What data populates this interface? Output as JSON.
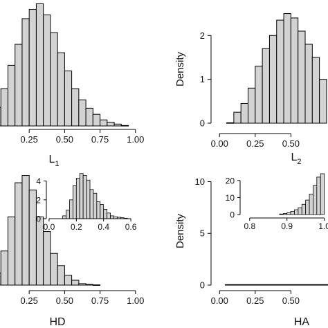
{
  "chart_data": [
    {
      "type": "bar",
      "panel": "L1",
      "xlabel_main": "L",
      "xlabel_sub": "1",
      "ylabel": "",
      "xticks": [
        "0.25",
        "0.50",
        "0.75",
        "1.00"
      ],
      "xlim": [
        0,
        1.05
      ],
      "ylim": [
        0,
        2.7
      ],
      "bins": [
        [
          0.0,
          0.05
        ],
        [
          0.05,
          0.1
        ],
        [
          0.1,
          0.15
        ],
        [
          0.15,
          0.2
        ],
        [
          0.2,
          0.25
        ],
        [
          0.25,
          0.3
        ],
        [
          0.3,
          0.35
        ],
        [
          0.35,
          0.4
        ],
        [
          0.4,
          0.45
        ],
        [
          0.45,
          0.5
        ],
        [
          0.5,
          0.55
        ],
        [
          0.55,
          0.6
        ],
        [
          0.6,
          0.65
        ],
        [
          0.65,
          0.7
        ],
        [
          0.7,
          0.75
        ],
        [
          0.75,
          0.8
        ],
        [
          0.8,
          0.85
        ],
        [
          0.85,
          0.9
        ],
        [
          0.9,
          0.95
        ]
      ],
      "values": [
        0.4,
        0.8,
        1.3,
        1.75,
        2.3,
        2.5,
        2.62,
        2.38,
        2.0,
        1.57,
        1.18,
        0.8,
        0.56,
        0.38,
        0.25,
        0.13,
        0.08,
        0.04,
        0.01
      ]
    },
    {
      "type": "bar",
      "panel": "L2",
      "xlabel_main": "L",
      "xlabel_sub": "2",
      "ylabel": "Density",
      "xticks": [
        "0.00",
        "0.25",
        "0.50"
      ],
      "yticks": [
        "0",
        "1",
        "2"
      ],
      "xlim": [
        -0.04,
        0.76
      ],
      "ylim": [
        0,
        2.62
      ],
      "bins": [
        [
          0.05,
          0.1
        ],
        [
          0.1,
          0.15
        ],
        [
          0.15,
          0.2
        ],
        [
          0.2,
          0.25
        ],
        [
          0.25,
          0.3
        ],
        [
          0.3,
          0.35
        ],
        [
          0.35,
          0.4
        ],
        [
          0.4,
          0.45
        ],
        [
          0.45,
          0.5
        ],
        [
          0.5,
          0.55
        ],
        [
          0.55,
          0.6
        ],
        [
          0.6,
          0.65
        ],
        [
          0.65,
          0.7
        ],
        [
          0.7,
          0.75
        ]
      ],
      "values": [
        0.01,
        0.25,
        0.45,
        0.8,
        1.3,
        1.7,
        2.0,
        2.35,
        2.5,
        2.4,
        2.1,
        1.8,
        1.5,
        1.0
      ]
    },
    {
      "type": "bar",
      "panel": "HD",
      "xlabel_main": "HD",
      "xlabel_sub": "",
      "ylabel": "",
      "xticks": [
        "0.25",
        "0.50",
        "0.75",
        "1.00"
      ],
      "xlim": [
        0,
        1.05
      ],
      "ylim": [
        0,
        4.6
      ],
      "bins": [
        [
          0.0,
          0.05
        ],
        [
          0.05,
          0.1
        ],
        [
          0.1,
          0.15
        ],
        [
          0.15,
          0.2
        ],
        [
          0.2,
          0.25
        ],
        [
          0.25,
          0.3
        ],
        [
          0.3,
          0.35
        ],
        [
          0.35,
          0.4
        ],
        [
          0.4,
          0.45
        ],
        [
          0.45,
          0.5
        ],
        [
          0.5,
          0.55
        ],
        [
          0.55,
          0.6
        ],
        [
          0.6,
          0.65
        ],
        [
          0.65,
          0.7
        ],
        [
          0.7,
          0.75
        ]
      ],
      "values": [
        0.5,
        1.4,
        2.8,
        4.2,
        4.5,
        3.9,
        2.8,
        2.2,
        1.3,
        0.8,
        0.4,
        0.2,
        0.06,
        0.03,
        0.01
      ]
    },
    {
      "type": "bar",
      "panel": "HD-inset",
      "xticks": [
        "0.0",
        "0.2",
        "0.4",
        "0.6"
      ],
      "yticks": [
        "0",
        "2",
        "4"
      ],
      "xlim": [
        -0.02,
        0.62
      ],
      "ylim": [
        0,
        5.0
      ],
      "bins": [
        [
          0.1,
          0.125
        ],
        [
          0.125,
          0.15
        ],
        [
          0.15,
          0.175
        ],
        [
          0.175,
          0.2
        ],
        [
          0.2,
          0.225
        ],
        [
          0.225,
          0.25
        ],
        [
          0.25,
          0.275
        ],
        [
          0.275,
          0.3
        ],
        [
          0.3,
          0.325
        ],
        [
          0.325,
          0.35
        ],
        [
          0.35,
          0.375
        ],
        [
          0.375,
          0.4
        ],
        [
          0.4,
          0.425
        ],
        [
          0.425,
          0.45
        ],
        [
          0.45,
          0.475
        ],
        [
          0.475,
          0.5
        ],
        [
          0.5,
          0.525
        ],
        [
          0.525,
          0.55
        ],
        [
          0.55,
          0.575
        ]
      ],
      "values": [
        0.3,
        0.9,
        2.0,
        3.5,
        4.3,
        4.8,
        4.6,
        4.1,
        3.1,
        2.7,
        1.8,
        1.5,
        1.0,
        0.6,
        0.3,
        0.2,
        0.15,
        0.1,
        0.05
      ]
    },
    {
      "type": "bar",
      "panel": "HA",
      "xlabel_main": "HA",
      "xlabel_sub": "",
      "ylabel": "Density",
      "xticks": [
        "0.00",
        "0.25",
        "0.50"
      ],
      "yticks": [
        "0",
        "5",
        "10"
      ],
      "xlim": [
        -0.04,
        0.76
      ],
      "ylim": [
        0,
        10.7
      ],
      "bins": [
        [
          0.04,
          0.76
        ]
      ],
      "values": [
        0.05
      ]
    },
    {
      "type": "bar",
      "panel": "HA-inset",
      "xticks": [
        "0.8",
        "0.9",
        "1.0"
      ],
      "yticks": [
        "0",
        "10",
        "20"
      ],
      "xlim": [
        0.78,
        1.01
      ],
      "ylim": [
        0,
        24
      ],
      "bins": [
        [
          0.88,
          0.89
        ],
        [
          0.89,
          0.9
        ],
        [
          0.9,
          0.91
        ],
        [
          0.91,
          0.92
        ],
        [
          0.92,
          0.93
        ],
        [
          0.93,
          0.94
        ],
        [
          0.94,
          0.95
        ],
        [
          0.95,
          0.96
        ],
        [
          0.96,
          0.97
        ],
        [
          0.97,
          0.98
        ],
        [
          0.98,
          0.99
        ],
        [
          0.99,
          1.0
        ]
      ],
      "values": [
        0.3,
        0.6,
        1.0,
        1.8,
        2.8,
        4.0,
        6.0,
        8.5,
        12.0,
        17.0,
        22.0,
        24.0
      ]
    }
  ],
  "colors": {
    "bar_fill": "#d3d3d3",
    "bar_stroke": "#000000"
  }
}
